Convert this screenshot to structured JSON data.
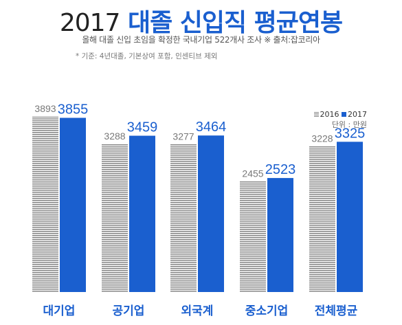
{
  "header": {
    "title_year": "2017",
    "title_main": "대졸 신입직 평균연봉",
    "subtitle": "올해 대졸 신입 초임을 확정한 국내기업 522개사 조사  ※ 출처:잡코리아",
    "note": "* 기준: 4년대졸, 기본상여 포함, 인센티브 제외"
  },
  "legend": {
    "label_2016": "2016",
    "label_2017": "2017",
    "unit": "단위 : 만원"
  },
  "colors": {
    "bar_2017": "#1a5fcf",
    "bar_2016_stripe": "#8a8a8a",
    "category_label": "#1a5fcf",
    "value_2016": "#777777",
    "value_2017": "#1a5fcf"
  },
  "chart_data": {
    "type": "bar",
    "title": "2017 대졸 신입직 평균연봉",
    "xlabel": "",
    "ylabel": "",
    "unit": "만원",
    "categories": [
      "대기업",
      "공기업",
      "외국계",
      "중소기업",
      "전체평균"
    ],
    "series": [
      {
        "name": "2016",
        "values": [
          3893,
          3288,
          3277,
          2455,
          3228
        ]
      },
      {
        "name": "2017",
        "values": [
          3855,
          3459,
          3464,
          2523,
          3325
        ]
      }
    ],
    "ylim": [
      0,
      3893
    ],
    "grid": false,
    "legend": "top-right"
  }
}
